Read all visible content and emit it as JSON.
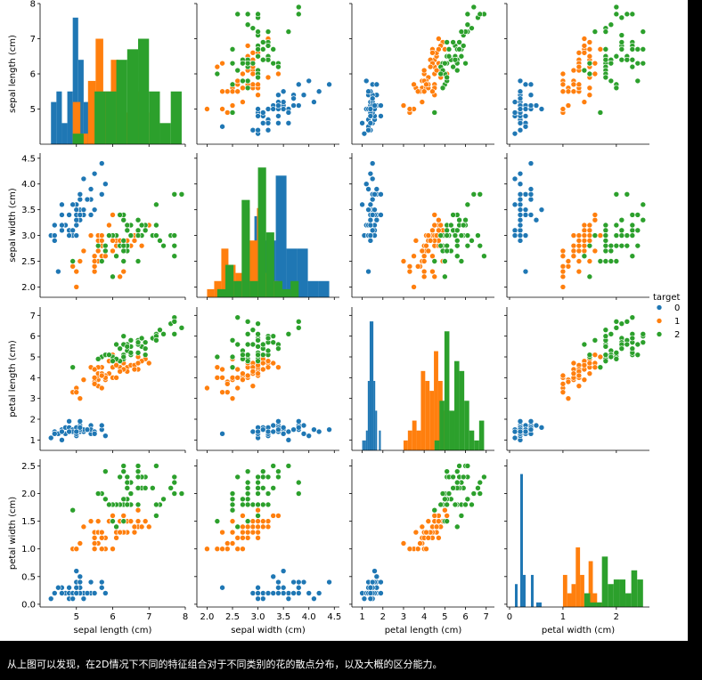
{
  "caption": "从上图可以发现，在2D情况下不同的特征组合对于不同类别的花的散点分布，以及大概的区分能力。",
  "chart_data": {
    "type": "pairplot",
    "features": [
      "sepal length (cm)",
      "sepal width (cm)",
      "petal length (cm)",
      "petal width (cm)"
    ],
    "legend": {
      "title": "target",
      "entries": [
        "0",
        "1",
        "2"
      ],
      "placement": "right"
    },
    "colors": [
      "#1f77b4",
      "#ff7f0e",
      "#2ca02c"
    ],
    "ranges": [
      [
        4.0,
        8.0
      ],
      [
        1.8,
        4.6
      ],
      [
        0.5,
        7.4
      ],
      [
        -0.05,
        2.62
      ]
    ],
    "ticks": [
      [
        5,
        6,
        7,
        8
      ],
      [
        2.0,
        2.5,
        3.0,
        3.5,
        4.0,
        4.5
      ],
      [
        1,
        2,
        3,
        4,
        5,
        6,
        7
      ],
      [
        0.0,
        0.5,
        1.0,
        1.5,
        2.0,
        2.5
      ]
    ],
    "tick_labels": [
      [
        "5",
        "6",
        "7",
        "8"
      ],
      [
        "2.0",
        "2.5",
        "3.0",
        "3.5",
        "4.0",
        "4.5"
      ],
      [
        "1",
        "2",
        "3",
        "4",
        "5",
        "6",
        "7"
      ],
      [
        "0.0",
        "0.5",
        "1.0",
        "1.5",
        "2.0",
        "2.5"
      ]
    ],
    "y_tick_labels_sepal_length": [
      "5",
      "6",
      "7",
      "8"
    ],
    "x_tick_labels_petal_width": [
      "0",
      "1",
      "2"
    ],
    "x_ticks_petal_width": [
      0,
      1,
      2
    ],
    "data": "5.1 3.5 1.4 .2 0|4.9 3 1.4 .2 0|4.7 3.2 1.3 .2 0|4.6 3.1 1.5 .2 0|5 3.6 1.4 .2 0|5.4 3.9 1.7 .4 0|4.6 3.4 1.4 .3 0|5 3.4 1.5 .2 0|4.4 2.9 1.4 .2 0|4.9 3.1 1.5 .1 0|5.4 3.7 1.5 .2 0|4.8 3.4 1.6 .2 0|4.8 3 1.4 .1 0|4.3 3 1.1 .1 0|5.8 4 1.2 .2 0|5.7 4.4 1.5 .4 0|5.4 3.9 1.3 .4 0|5.1 3.5 1.4 .3 0|5.7 3.8 1.7 .3 0|5.1 3.8 1.5 .3 0|5.4 3.4 1.7 .2 0|5.1 3.7 1.5 .4 0|4.6 3.6 1 .2 0|5.1 3.3 1.7 .5 0|4.8 3.4 1.9 .2 0|5 3 1.6 .2 0|5 3.4 1.6 .4 0|5.2 3.5 1.5 .2 0|5.2 3.4 1.4 .2 0|4.7 3.2 1.6 .2 0|4.8 3.1 1.6 .2 0|5.4 3.4 1.5 .4 0|5.2 4.1 1.5 .1 0|5.5 4.2 1.4 .2 0|4.9 3.1 1.5 .2 0|5 3.2 1.2 .2 0|5.5 3.5 1.3 .2 0|4.9 3.6 1.4 .1 0|4.4 3 1.3 .2 0|5.1 3.4 1.5 .2 0|5 3.5 1.3 .3 0|4.5 2.3 1.3 .3 0|4.4 3.2 1.3 .2 0|5 3.5 1.6 .6 0|5.1 3.8 1.9 .4 0|4.8 3 1.4 .3 0|5.1 3.8 1.6 .2 0|4.6 3.2 1.4 .2 0|5.3 3.7 1.5 .2 0|5 3.3 1.4 .2 0|7 3.2 4.7 1.4 1|6.4 3.2 4.5 1.5 1|6.9 3.1 4.9 1.5 1|5.5 2.3 4 1.3 1|6.5 2.8 4.6 1.5 1|5.7 2.8 4.5 1.3 1|6.3 3.3 4.7 1.6 1|4.9 2.4 3.3 1 1|6.6 2.9 4.6 1.3 1|5.2 2.7 3.9 1.4 1|5 2 3.5 1 1|5.9 3 4.2 1.5 1|6 2.2 4 1 1|6.1 2.9 4.7 1.4 1|5.6 2.9 3.6 1.3 1|6.7 3.1 4.4 1.4 1|5.6 3 4.5 1.5 1|5.8 2.7 4.1 1 1|6.2 2.2 4.5 1.5 1|5.6 2.5 3.9 1.1 1|5.9 3.2 4.8 1.8 1|6.1 2.8 4 1.3 1|6.3 2.5 4.9 1.5 1|6.1 2.8 4.7 1.2 1|6.4 2.9 4.3 1.3 1|6.6 3 4.4 1.4 1|6.8 2.8 4.8 1.4 1|6.7 3 5 1.7 1|6 2.9 4.5 1.5 1|5.7 2.6 3.5 1 1|5.5 2.4 3.8 1.1 1|5.5 2.4 3.7 1 1|5.8 2.7 3.9 1.2 1|6 2.7 5.1 1.6 1|5.4 3 4.5 1.5 1|6 3.4 4.5 1.6 1|6.7 3.1 4.7 1.5 1|6.3 2.3 4.4 1.3 1|5.6 3 4.1 1.3 1|5.5 2.5 4 1.3 1|5.5 2.6 4.4 1.2 1|6.1 3 4.6 1.4 1|5.8 2.6 4 1.2 1|5 2.3 3.3 1 1|5.6 2.7 4.2 1.3 1|5.7 3 4.2 1.2 1|5.7 2.9 4.2 1.3 1|6.2 2.9 4.3 1.3 1|5.1 2.5 3 1.1 1|5.7 2.8 4.1 1.3 1|6.3 3.3 6 2.5 2|5.8 2.7 5.1 1.9 2|7.1 3 5.9 2.1 2|6.3 2.9 5.6 1.8 2|6.5 3 5.8 2.2 2|7.6 3 6.6 2.1 2|4.9 2.5 4.5 1.7 2|7.3 2.9 6.3 1.8 2|6.7 2.5 5.8 1.8 2|7.2 3.6 6.1 2.5 2|6.5 3.2 5.1 2 2|6.4 2.7 5.3 1.9 2|6.8 3 5.5 2.1 2|5.7 2.5 5 2 2|5.8 2.8 5.1 2.4 2|6.4 3.2 5.3 2.3 2|6.5 3 5.5 1.8 2|7.7 3.8 6.7 2.2 2|7.7 2.6 6.9 2.3 2|6 2.2 5 1.5 2|6.9 3.2 5.7 2.3 2|5.6 2.8 4.9 2 2|7.7 2.8 6.7 2 2|6.3 2.7 4.9 1.8 2|6.7 3.3 5.7 2.1 2|7.2 3.2 6 1.8 2|6.2 2.8 4.8 1.8 2|6.1 3 4.9 1.8 2|6.4 2.8 5.6 2.1 2|7.2 3 5.8 1.6 2|7.4 2.8 6.1 1.9 2|7.9 3.8 6.4 2 2|6.4 2.8 5.6 2.2 2|6.3 2.8 5.1 1.5 2|6.1 2.6 5.6 1.4 2|7.7 3 6.1 2.3 2|6.3 3.4 5.6 2.4 2|6.4 3.1 5.5 1.8 2|6 3 4.8 1.8 2|6.9 3.1 5.4 2.1 2|6.7 3.1 5.6 2.4 2|6.9 3.1 5.1 2.3 2|5.8 2.7 5.1 1.9 2|6.8 3.2 5.9 2.3 2|6.7 3.3 5.7 2.5 2|6.7 3 5.2 2.3 2|6.3 2.5 5 1.9 2|6.5 3 5.2 2 2|6.2 3.4 5.4 2.3 2|5.9 3 5.1 1.8 2"
  }
}
